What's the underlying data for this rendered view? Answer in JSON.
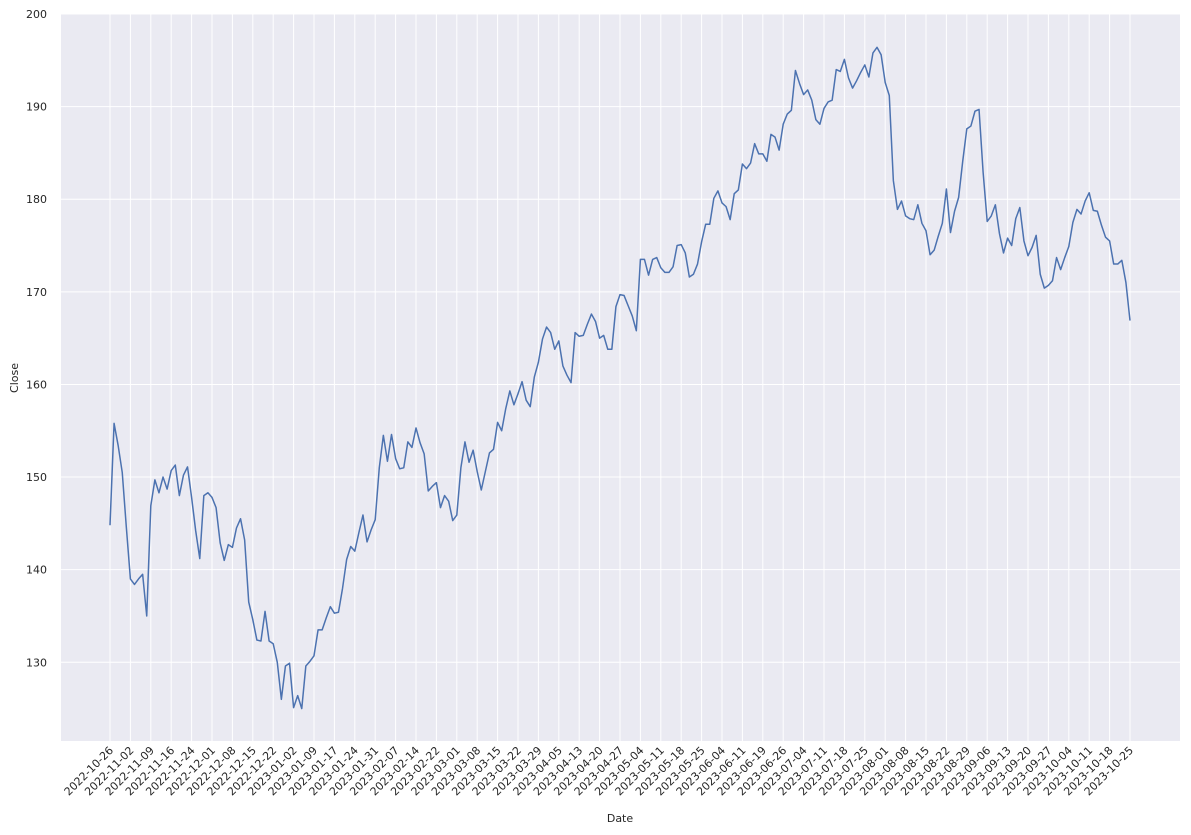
{
  "chart_data": {
    "type": "line",
    "x_label": "Date",
    "y_label": "Close",
    "categories": [
      "2022-10-26",
      null,
      null,
      null,
      null,
      "2022-11-02",
      null,
      null,
      null,
      null,
      "2022-11-09",
      null,
      null,
      null,
      null,
      "2022-11-16",
      null,
      null,
      null,
      null,
      "2022-11-24",
      null,
      null,
      null,
      null,
      "2022-12-01",
      null,
      null,
      null,
      null,
      "2022-12-08",
      null,
      null,
      null,
      null,
      "2022-12-15",
      null,
      null,
      null,
      null,
      "2022-12-22",
      null,
      null,
      null,
      null,
      "2023-01-02",
      null,
      null,
      null,
      null,
      "2023-01-09",
      null,
      null,
      null,
      null,
      "2023-01-17",
      null,
      null,
      null,
      null,
      "2023-01-24",
      null,
      null,
      null,
      null,
      "2023-01-31",
      null,
      null,
      null,
      null,
      "2023-02-07",
      null,
      null,
      null,
      null,
      "2023-02-14",
      null,
      null,
      null,
      null,
      "2023-02-22",
      null,
      null,
      null,
      null,
      "2023-03-01",
      null,
      null,
      null,
      null,
      "2023-03-08",
      null,
      null,
      null,
      null,
      "2023-03-15",
      null,
      null,
      null,
      null,
      "2023-03-22",
      null,
      null,
      null,
      null,
      "2023-03-29",
      null,
      null,
      null,
      null,
      "2023-04-05",
      null,
      null,
      null,
      null,
      "2023-04-13",
      null,
      null,
      null,
      null,
      "2023-04-20",
      null,
      null,
      null,
      null,
      "2023-04-27",
      null,
      null,
      null,
      null,
      "2023-05-04",
      null,
      null,
      null,
      null,
      "2023-05-11",
      null,
      null,
      null,
      null,
      "2023-05-18",
      null,
      null,
      null,
      null,
      "2023-05-25",
      null,
      null,
      null,
      null,
      "2023-06-04",
      null,
      null,
      null,
      null,
      "2023-06-11",
      null,
      null,
      null,
      null,
      "2023-06-19",
      null,
      null,
      null,
      null,
      "2023-06-26",
      null,
      null,
      null,
      null,
      "2023-07-04",
      null,
      null,
      null,
      null,
      "2023-07-11",
      null,
      null,
      null,
      null,
      "2023-07-18",
      null,
      null,
      null,
      null,
      "2023-07-25",
      null,
      null,
      null,
      null,
      "2023-08-01",
      null,
      null,
      null,
      null,
      "2023-08-08",
      null,
      null,
      null,
      null,
      "2023-08-15",
      null,
      null,
      null,
      null,
      "2023-08-22",
      null,
      null,
      null,
      null,
      "2023-08-29",
      null,
      null,
      null,
      null,
      "2023-09-06",
      null,
      null,
      null,
      null,
      "2023-09-13",
      null,
      null,
      null,
      null,
      "2023-09-20",
      null,
      null,
      null,
      null,
      "2023-09-27",
      null,
      null,
      null,
      null,
      "2023-10-04",
      null,
      null,
      null,
      null,
      "2023-10-11",
      null,
      null,
      null,
      null,
      "2023-10-18",
      null,
      null,
      null,
      null,
      "2023-10-25"
    ],
    "values": [
      144.8,
      155.8,
      153.4,
      150.5,
      144.6,
      139.0,
      138.4,
      139.0,
      139.5,
      135.0,
      146.9,
      149.7,
      148.3,
      150.0,
      148.7,
      150.7,
      151.3,
      148.0,
      150.2,
      151.1,
      147.8,
      144.2,
      141.2,
      148.0,
      148.3,
      147.8,
      146.7,
      142.9,
      141.0,
      142.7,
      142.4,
      144.5,
      145.5,
      143.2,
      136.5,
      134.6,
      132.4,
      132.3,
      135.5,
      132.3,
      132.0,
      130.0,
      126.0,
      129.6,
      129.9,
      125.1,
      126.4,
      125.0,
      129.6,
      130.1,
      130.7,
      133.5,
      133.5,
      134.8,
      136.0,
      135.3,
      135.4,
      138.0,
      141.1,
      142.5,
      142.0,
      144.0,
      145.9,
      143.0,
      144.3,
      145.4,
      151.0,
      154.5,
      151.7,
      154.6,
      152.0,
      150.9,
      151.0,
      153.8,
      153.2,
      155.3,
      153.7,
      152.5,
      148.5,
      149.0,
      149.4,
      146.7,
      148.0,
      147.4,
      145.3,
      145.9,
      151.0,
      153.8,
      151.6,
      152.9,
      150.6,
      148.6,
      150.6,
      152.6,
      153.0,
      155.9,
      155.0,
      157.4,
      159.3,
      157.8,
      159.0,
      160.3,
      158.3,
      157.6,
      160.8,
      162.4,
      164.9,
      166.2,
      165.6,
      163.8,
      164.7,
      162.0,
      161.0,
      160.2,
      165.6,
      165.2,
      165.3,
      166.5,
      167.6,
      166.8,
      165.0,
      165.3,
      163.8,
      163.8,
      168.4,
      169.7,
      169.6,
      168.5,
      167.4,
      165.8,
      173.5,
      173.5,
      171.8,
      173.5,
      173.7,
      172.6,
      172.1,
      172.1,
      172.7,
      175.0,
      175.1,
      174.2,
      171.6,
      171.9,
      173.0,
      175.4,
      177.3,
      177.3,
      180.1,
      180.9,
      179.6,
      179.2,
      177.8,
      180.6,
      181.0,
      183.8,
      183.3,
      183.9,
      186.0,
      184.9,
      184.9,
      184.1,
      187.0,
      186.7,
      185.3,
      188.1,
      189.2,
      189.6,
      193.9,
      192.5,
      191.3,
      191.8,
      190.7,
      188.6,
      188.1,
      189.8,
      190.5,
      190.7,
      194.0,
      193.8,
      195.1,
      193.1,
      192.0,
      192.8,
      193.7,
      194.5,
      193.2,
      195.8,
      196.4,
      195.6,
      192.6,
      191.2,
      182.0,
      178.9,
      179.8,
      178.2,
      177.9,
      177.8,
      179.4,
      177.4,
      176.6,
      174.0,
      174.5,
      176.0,
      177.4,
      181.1,
      176.4,
      178.7,
      180.2,
      184.1,
      187.6,
      187.9,
      189.5,
      189.7,
      182.9,
      177.6,
      178.2,
      179.4,
      176.3,
      174.2,
      175.8,
      175.0,
      177.9,
      179.1,
      175.5,
      173.9,
      174.8,
      176.1,
      171.9,
      170.4,
      170.7,
      171.2,
      173.7,
      172.4,
      173.7,
      174.9,
      177.5,
      178.9,
      178.4,
      179.8,
      180.7,
      178.8,
      178.7,
      177.2,
      175.9,
      175.5,
      173.0,
      173.0,
      173.4,
      171.0,
      166.9
    ],
    "color": "#4c72b0",
    "ylim": [
      121.5,
      200
    ],
    "yticks": [
      130,
      140,
      150,
      160,
      170,
      180,
      190,
      200
    ],
    "grid": true
  }
}
